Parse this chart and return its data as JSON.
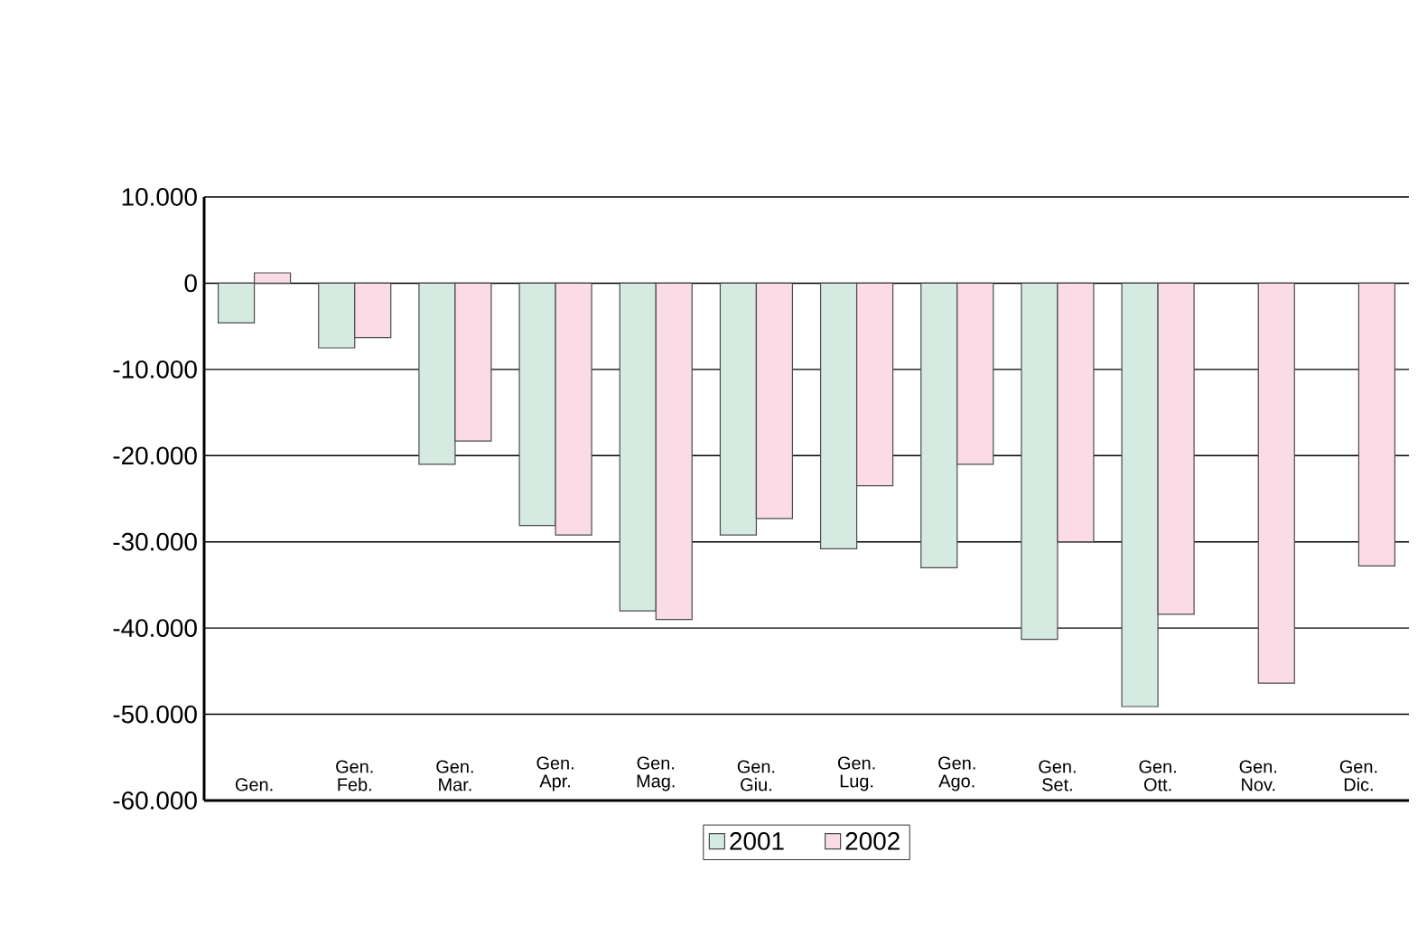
{
  "chart_data": {
    "type": "bar",
    "categories": [
      "Gen.",
      "Gen. Feb.",
      "Gen. Mar.",
      "Gen. Apr.",
      "Gen. Mag.",
      "Gen. Giu.",
      "Gen. Lug.",
      "Gen. Ago.",
      "Gen. Set.",
      "Gen. Ott.",
      "Gen. Nov.",
      "Gen. Dic."
    ],
    "series": [
      {
        "name": "2001",
        "color": "#d5ebe2",
        "values": [
          -4600,
          -7500,
          -21000,
          -28100,
          -38000,
          -29200,
          -30800,
          -33000,
          -41300,
          -49100,
          null,
          null
        ]
      },
      {
        "name": "2002",
        "color": "#fbdce6",
        "values": [
          1200,
          -6300,
          -18300,
          -29200,
          -39000,
          -27300,
          -23500,
          -21000,
          -30000,
          -38400,
          -46400,
          -32800
        ]
      }
    ],
    "ylim": [
      -60000,
      10000
    ],
    "yticks": [
      {
        "value": 10000,
        "label": "10.000"
      },
      0,
      {
        "value": -10000,
        "label": "-10.000"
      },
      {
        "value": -20000,
        "label": "-20.000"
      },
      {
        "value": -30000,
        "label": "-30.000"
      },
      {
        "value": -40000,
        "label": "-40.000"
      },
      {
        "value": -50000,
        "label": "-50.000"
      },
      {
        "value": -60000,
        "label": "-60.000"
      }
    ],
    "grid": "y",
    "legend": "bottom"
  }
}
